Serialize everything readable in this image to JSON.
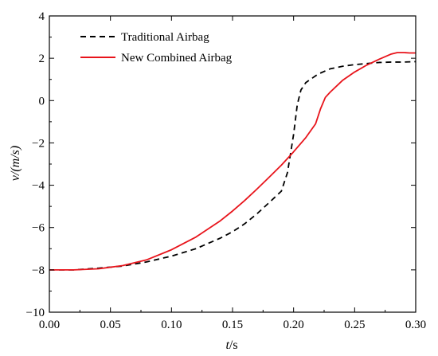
{
  "chart_data": {
    "type": "line",
    "xlabel_italic": "t",
    "xlabel_unit": "/s",
    "ylabel_italic": "v/(m/s)",
    "xlim": [
      0.0,
      0.3
    ],
    "ylim": [
      -10,
      4
    ],
    "xticks": [
      "0.00",
      "0.05",
      "0.10",
      "0.15",
      "0.20",
      "0.25",
      "0.30"
    ],
    "yticks": [
      "-10",
      "-8",
      "-6",
      "-4",
      "-2",
      "0",
      "2",
      "4"
    ],
    "legend_position": "top-left",
    "grid": false,
    "series": [
      {
        "name": "Traditional Airbag",
        "color": "#000000",
        "dash": "dashed",
        "points": [
          [
            0.0,
            -8.0
          ],
          [
            0.02,
            -8.0
          ],
          [
            0.04,
            -7.92
          ],
          [
            0.06,
            -7.82
          ],
          [
            0.08,
            -7.62
          ],
          [
            0.1,
            -7.35
          ],
          [
            0.12,
            -7.0
          ],
          [
            0.14,
            -6.5
          ],
          [
            0.15,
            -6.2
          ],
          [
            0.16,
            -5.82
          ],
          [
            0.17,
            -5.35
          ],
          [
            0.18,
            -4.82
          ],
          [
            0.19,
            -4.28
          ],
          [
            0.195,
            -3.4
          ],
          [
            0.2,
            -1.6
          ],
          [
            0.203,
            -0.2
          ],
          [
            0.206,
            0.5
          ],
          [
            0.21,
            0.85
          ],
          [
            0.22,
            1.25
          ],
          [
            0.23,
            1.5
          ],
          [
            0.24,
            1.62
          ],
          [
            0.25,
            1.7
          ],
          [
            0.26,
            1.75
          ],
          [
            0.27,
            1.8
          ],
          [
            0.28,
            1.82
          ],
          [
            0.29,
            1.82
          ],
          [
            0.3,
            1.84
          ]
        ]
      },
      {
        "name": "New Combined Airbag",
        "color": "#e8141b",
        "dash": "solid",
        "points": [
          [
            0.0,
            -8.0
          ],
          [
            0.02,
            -8.0
          ],
          [
            0.04,
            -7.95
          ],
          [
            0.06,
            -7.8
          ],
          [
            0.08,
            -7.52
          ],
          [
            0.1,
            -7.05
          ],
          [
            0.12,
            -6.45
          ],
          [
            0.14,
            -5.68
          ],
          [
            0.15,
            -5.22
          ],
          [
            0.16,
            -4.72
          ],
          [
            0.17,
            -4.18
          ],
          [
            0.18,
            -3.62
          ],
          [
            0.19,
            -3.05
          ],
          [
            0.2,
            -2.42
          ],
          [
            0.21,
            -1.75
          ],
          [
            0.218,
            -1.1
          ],
          [
            0.222,
            -0.4
          ],
          [
            0.226,
            0.15
          ],
          [
            0.23,
            0.4
          ],
          [
            0.24,
            0.95
          ],
          [
            0.25,
            1.35
          ],
          [
            0.26,
            1.68
          ],
          [
            0.27,
            1.95
          ],
          [
            0.28,
            2.2
          ],
          [
            0.285,
            2.27
          ],
          [
            0.29,
            2.27
          ],
          [
            0.295,
            2.25
          ],
          [
            0.3,
            2.25
          ]
        ]
      }
    ]
  }
}
